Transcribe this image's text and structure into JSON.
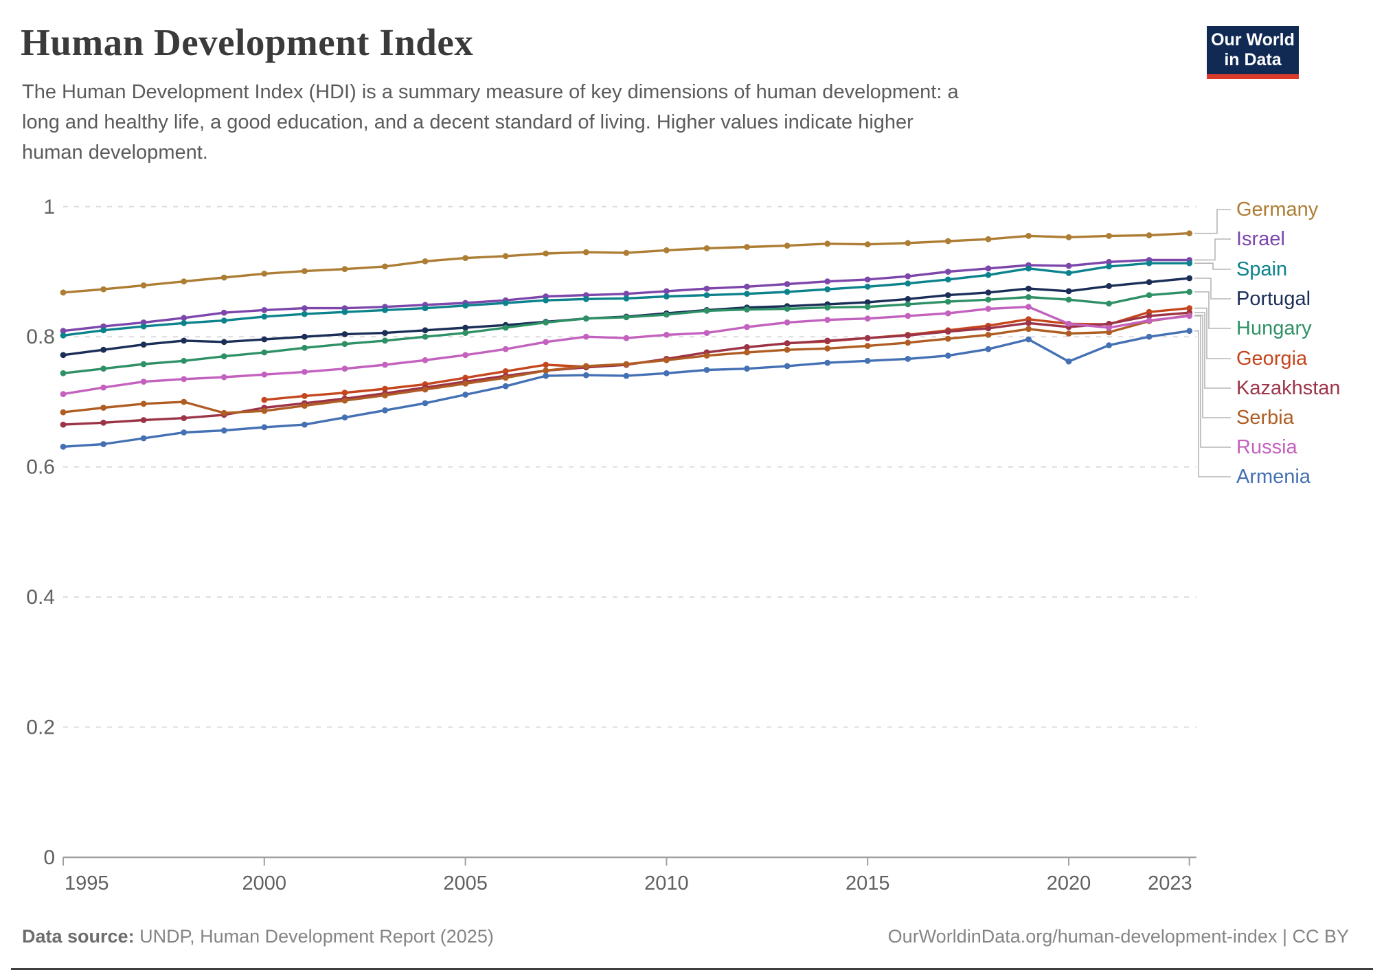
{
  "header": {
    "title": "Human Development Index",
    "subtitle": "The Human Development Index (HDI) is a summary measure of key dimensions of human development: a long and healthy life, a good education, and a decent standard of living. Higher values indicate higher human development.",
    "logo": {
      "line1": "Our World",
      "line2": "in Data",
      "bg_color": "#102A53",
      "bar_color": "#D93A2B"
    }
  },
  "footer": {
    "source_label": "Data source:",
    "source_text": "UNDP, Human Development Report (2025)",
    "credit": "OurWorldinData.org/human-development-index | CC BY"
  },
  "chart_data": {
    "type": "line",
    "title": "Human Development Index",
    "xlabel": "",
    "ylabel": "",
    "x_start": 1995,
    "x_end": 2023,
    "x_interval": 1,
    "x_tick_labels": [
      "1995",
      "2000",
      "2005",
      "2010",
      "2015",
      "2020",
      "2023"
    ],
    "y_ticks": [
      "0",
      "0.2",
      "0.4",
      "0.6",
      "0.8",
      "1"
    ],
    "ylim": [
      0,
      1
    ],
    "grid": true,
    "grid_style": "dashed",
    "legend_position": "right",
    "axis_color": "#a0a0a0",
    "tick_text_color": "#616161",
    "leader_line_color": "#b5b5b5",
    "series": [
      {
        "name": "Germany",
        "color": "#AD7D34",
        "start_year": 1995,
        "values": [
          0.868,
          0.873,
          0.879,
          0.885,
          0.891,
          0.897,
          0.901,
          0.904,
          0.908,
          0.916,
          0.921,
          0.924,
          0.928,
          0.93,
          0.929,
          0.933,
          0.936,
          0.938,
          0.94,
          0.943,
          0.942,
          0.944,
          0.947,
          0.95,
          0.955,
          0.953,
          0.955,
          0.956,
          0.959
        ]
      },
      {
        "name": "Israel",
        "color": "#7C46AB",
        "start_year": 1995,
        "values": [
          0.809,
          0.816,
          0.822,
          0.829,
          0.837,
          0.841,
          0.844,
          0.844,
          0.846,
          0.849,
          0.852,
          0.856,
          0.862,
          0.864,
          0.866,
          0.87,
          0.874,
          0.877,
          0.881,
          0.885,
          0.888,
          0.893,
          0.9,
          0.905,
          0.91,
          0.909,
          0.915,
          0.918,
          0.918
        ]
      },
      {
        "name": "Spain",
        "color": "#0B828C",
        "start_year": 1995,
        "values": [
          0.802,
          0.81,
          0.816,
          0.821,
          0.825,
          0.831,
          0.835,
          0.838,
          0.841,
          0.844,
          0.848,
          0.852,
          0.856,
          0.858,
          0.859,
          0.862,
          0.864,
          0.866,
          0.869,
          0.873,
          0.877,
          0.882,
          0.888,
          0.895,
          0.905,
          0.898,
          0.908,
          0.913,
          0.913
        ]
      },
      {
        "name": "Portugal",
        "color": "#1A2E57",
        "start_year": 1995,
        "values": [
          0.772,
          0.78,
          0.788,
          0.794,
          0.792,
          0.796,
          0.8,
          0.804,
          0.806,
          0.81,
          0.814,
          0.818,
          0.823,
          0.828,
          0.831,
          0.836,
          0.841,
          0.845,
          0.847,
          0.85,
          0.853,
          0.858,
          0.864,
          0.868,
          0.874,
          0.87,
          0.878,
          0.884,
          0.89
        ]
      },
      {
        "name": "Hungary",
        "color": "#2E9065",
        "start_year": 1995,
        "values": [
          0.744,
          0.751,
          0.758,
          0.763,
          0.77,
          0.776,
          0.783,
          0.789,
          0.794,
          0.8,
          0.806,
          0.814,
          0.822,
          0.828,
          0.83,
          0.834,
          0.84,
          0.842,
          0.843,
          0.845,
          0.846,
          0.85,
          0.854,
          0.857,
          0.861,
          0.857,
          0.851,
          0.864,
          0.869
        ]
      },
      {
        "name": "Georgia",
        "color": "#C5461D",
        "start_year": 2000,
        "values": [
          0.703,
          0.709,
          0.714,
          0.72,
          0.727,
          0.737,
          0.747,
          0.757,
          0.754,
          0.757,
          0.766,
          0.776,
          0.784,
          0.79,
          0.793,
          0.798,
          0.803,
          0.81,
          0.817,
          0.827,
          0.82,
          0.819,
          0.838,
          0.844
        ]
      },
      {
        "name": "Kazakhstan",
        "color": "#9C3448",
        "start_year": 1995,
        "values": [
          0.665,
          0.668,
          0.672,
          0.675,
          0.68,
          0.691,
          0.698,
          0.705,
          0.713,
          0.722,
          0.731,
          0.74,
          0.748,
          0.753,
          0.757,
          0.766,
          0.776,
          0.784,
          0.79,
          0.794,
          0.798,
          0.802,
          0.808,
          0.813,
          0.821,
          0.815,
          0.82,
          0.832,
          0.837
        ]
      },
      {
        "name": "Serbia",
        "color": "#AF5D23",
        "start_year": 1995,
        "values": [
          0.684,
          0.691,
          0.697,
          0.7,
          0.683,
          0.686,
          0.694,
          0.702,
          0.71,
          0.719,
          0.728,
          0.737,
          0.748,
          0.755,
          0.758,
          0.764,
          0.771,
          0.776,
          0.78,
          0.782,
          0.786,
          0.791,
          0.797,
          0.803,
          0.812,
          0.805,
          0.807,
          0.824,
          0.833
        ]
      },
      {
        "name": "Russia",
        "color": "#C362BE",
        "start_year": 1995,
        "values": [
          0.712,
          0.722,
          0.731,
          0.735,
          0.738,
          0.742,
          0.746,
          0.751,
          0.757,
          0.764,
          0.772,
          0.781,
          0.792,
          0.8,
          0.798,
          0.803,
          0.806,
          0.815,
          0.822,
          0.826,
          0.828,
          0.832,
          0.836,
          0.843,
          0.846,
          0.82,
          0.814,
          0.825,
          0.832
        ]
      },
      {
        "name": "Armenia",
        "color": "#4470B4",
        "start_year": 1995,
        "values": [
          0.631,
          0.635,
          0.644,
          0.653,
          0.656,
          0.661,
          0.665,
          0.676,
          0.687,
          0.698,
          0.711,
          0.724,
          0.74,
          0.741,
          0.74,
          0.744,
          0.749,
          0.751,
          0.755,
          0.76,
          0.763,
          0.766,
          0.771,
          0.781,
          0.796,
          0.762,
          0.787,
          0.8,
          0.809
        ]
      }
    ]
  }
}
